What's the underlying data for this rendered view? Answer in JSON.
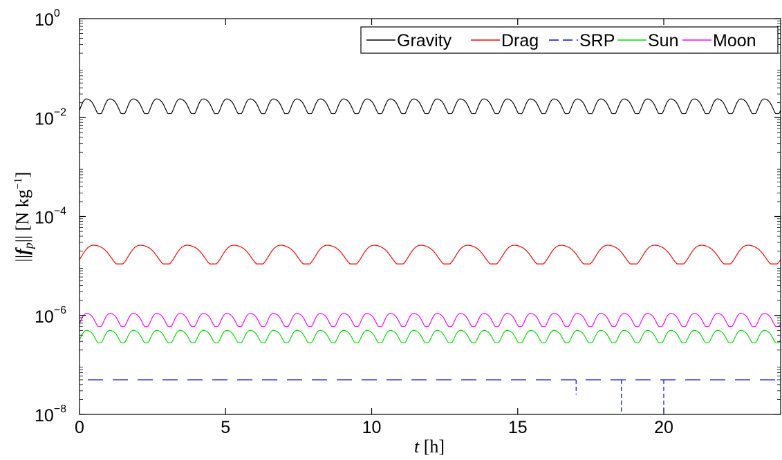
{
  "chart_data": {
    "type": "line",
    "title": "",
    "xlabel": "t [h]",
    "ylabel": "||f_p|| [N kg^-1]",
    "x_scale": "linear",
    "y_scale": "log",
    "xlim": [
      0,
      24
    ],
    "ylim": [
      1e-08,
      1
    ],
    "x_ticks": [
      0,
      5,
      10,
      15,
      20
    ],
    "y_ticks": [
      {
        "value": 1e-08,
        "base": "10",
        "exp": "−8"
      },
      {
        "value": 1e-06,
        "base": "10",
        "exp": "−6"
      },
      {
        "value": 0.0001,
        "base": "10",
        "exp": "−4"
      },
      {
        "value": 0.01,
        "base": "10",
        "exp": "−2"
      },
      {
        "value": 1,
        "base": "10",
        "exp": "0"
      }
    ],
    "grid": false,
    "legend_position": "top-right",
    "series": [
      {
        "name": "Gravity",
        "color": "#000000",
        "style": "solid",
        "pattern": "oscillation",
        "period_h": 0.8,
        "min": 0.012,
        "max": 0.025
      },
      {
        "name": "Drag",
        "color": "#ff0000",
        "style": "solid",
        "pattern": "oscillation",
        "period_h": 1.6,
        "min": 1.1e-05,
        "max": 2.8e-05
      },
      {
        "name": "SRP",
        "color": "#0000ff",
        "style": "dashed",
        "pattern": "constant_with_eclipse_drops",
        "level": 5e-08,
        "eclipse_drops": [
          {
            "t": 17.0,
            "to": 2.5e-08
          },
          {
            "t": 18.55,
            "to": 1e-08
          },
          {
            "t": 20.0,
            "to": 1e-08
          }
        ]
      },
      {
        "name": "Sun",
        "color": "#00e000",
        "style": "solid",
        "pattern": "oscillation",
        "period_h": 0.8,
        "min": 2.8e-07,
        "max": 5.2e-07
      },
      {
        "name": "Moon",
        "color": "#ff00ff",
        "style": "solid",
        "pattern": "oscillation",
        "period_h": 0.8,
        "min": 6e-07,
        "max": 1.15e-06
      }
    ]
  }
}
